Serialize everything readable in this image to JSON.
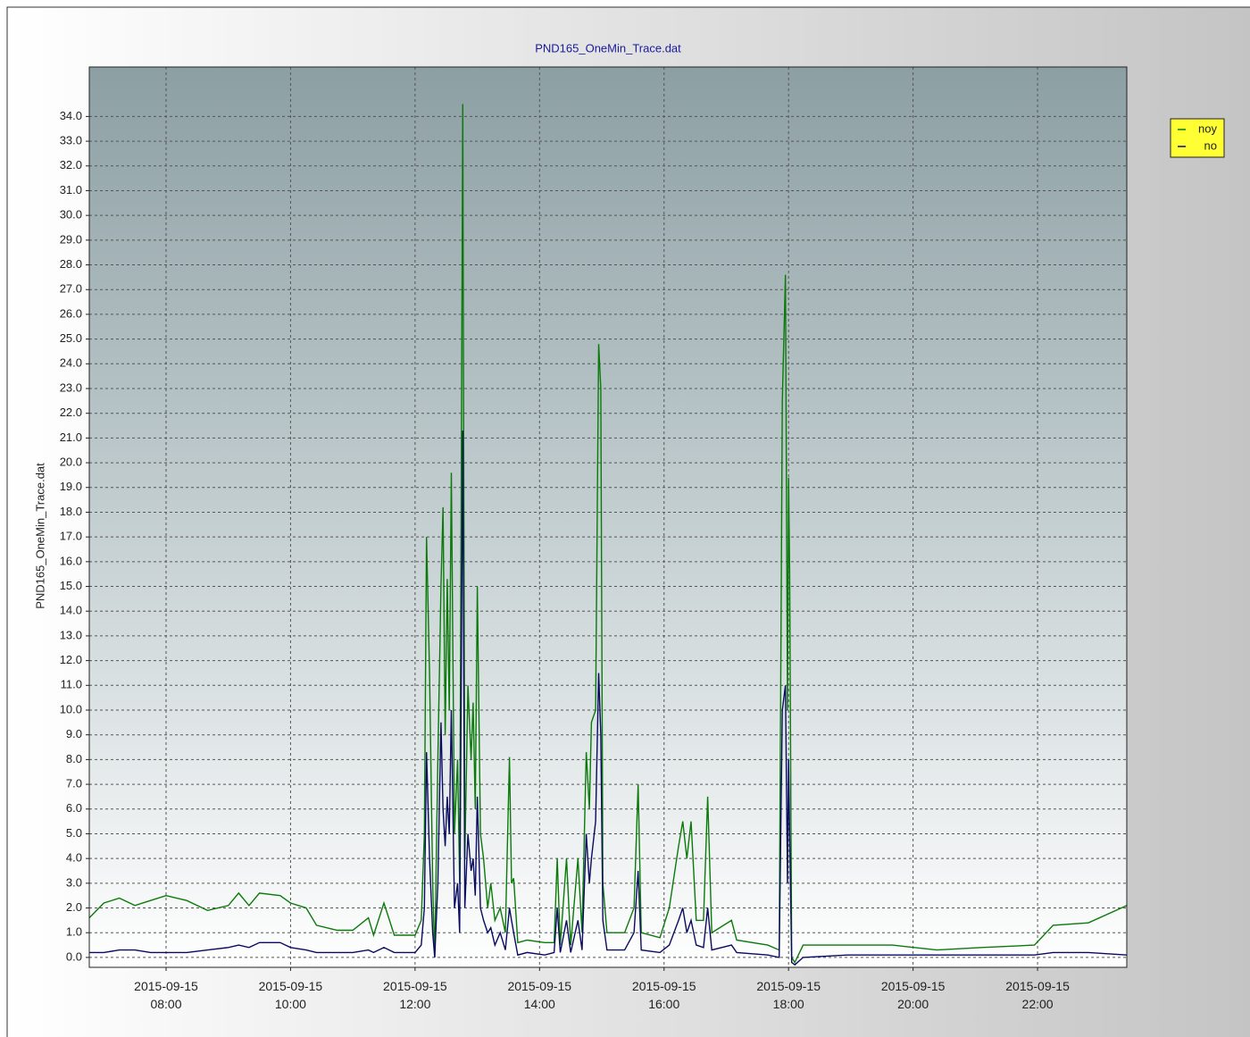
{
  "chart_data": {
    "type": "line",
    "title": "PND165_OneMin_Trace.dat",
    "y_label": "PND165_OneMin_Trace.dat",
    "legend": "top-right",
    "grid": true,
    "xlim": [
      "2015-09-15 06:46",
      "2015-09-15 23:26"
    ],
    "xticks": [
      "2015-09-15 08:00",
      "2015-09-15 10:00",
      "2015-09-15 12:00",
      "2015-09-15 14:00",
      "2015-09-15 16:00",
      "2015-09-15 18:00",
      "2015-09-15 20:00",
      "2015-09-15 22:00"
    ],
    "ylim": [
      -0.4,
      36
    ],
    "yticks": [
      {
        "value": 0,
        "label": "0.0"
      },
      {
        "value": 1,
        "label": "1.0"
      },
      {
        "value": 2,
        "label": "2.0"
      },
      {
        "value": 3,
        "label": "3.0"
      },
      {
        "value": 4,
        "label": "4.0"
      },
      {
        "value": 5,
        "label": "5.0"
      },
      {
        "value": 6,
        "label": "6.0"
      },
      {
        "value": 7,
        "label": "7.0"
      },
      {
        "value": 8,
        "label": "8.0"
      },
      {
        "value": 9,
        "label": "9.0"
      },
      {
        "value": 10,
        "label": "10.0"
      },
      {
        "value": 11,
        "label": "11.0"
      },
      {
        "value": 12,
        "label": "12.0"
      },
      {
        "value": 13,
        "label": "13.0"
      },
      {
        "value": 14,
        "label": "14.0"
      },
      {
        "value": 15,
        "label": "15.0"
      },
      {
        "value": 16,
        "label": "16.0"
      },
      {
        "value": 17,
        "label": "17.0"
      },
      {
        "value": 18,
        "label": "18.0"
      },
      {
        "value": 19,
        "label": "19.0"
      },
      {
        "value": 20,
        "label": "20.0"
      },
      {
        "value": 21,
        "label": "21.0"
      },
      {
        "value": 22,
        "label": "22.0"
      },
      {
        "value": 23,
        "label": "23.0"
      },
      {
        "value": 24,
        "label": "24.0"
      },
      {
        "value": 25,
        "label": "25.0"
      },
      {
        "value": 26,
        "label": "26.0"
      },
      {
        "value": 27,
        "label": "27.0"
      },
      {
        "value": 28,
        "label": "28.0"
      },
      {
        "value": 29,
        "label": "29.0"
      },
      {
        "value": 30,
        "label": "30.0"
      },
      {
        "value": 31,
        "label": "31.0"
      },
      {
        "value": 32,
        "label": "32.0"
      },
      {
        "value": 33,
        "label": "33.0"
      },
      {
        "value": 34,
        "label": "34.0"
      }
    ],
    "x": [
      "2015-09-15 06:46",
      "2015-09-15 07:00",
      "2015-09-15 07:15",
      "2015-09-15 07:30",
      "2015-09-15 07:45",
      "2015-09-15 08:00",
      "2015-09-15 08:20",
      "2015-09-15 08:40",
      "2015-09-15 09:00",
      "2015-09-15 09:10",
      "2015-09-15 09:20",
      "2015-09-15 09:30",
      "2015-09-15 09:50",
      "2015-09-15 10:00",
      "2015-09-15 10:15",
      "2015-09-15 10:25",
      "2015-09-15 10:45",
      "2015-09-15 11:00",
      "2015-09-15 11:15",
      "2015-09-15 11:20",
      "2015-09-15 11:30",
      "2015-09-15 11:40",
      "2015-09-15 12:00",
      "2015-09-15 12:06",
      "2015-09-15 12:09",
      "2015-09-15 12:11",
      "2015-09-15 12:14",
      "2015-09-15 12:17",
      "2015-09-15 12:19",
      "2015-09-15 12:22",
      "2015-09-15 12:25",
      "2015-09-15 12:27",
      "2015-09-15 12:29",
      "2015-09-15 12:31",
      "2015-09-15 12:33",
      "2015-09-15 12:35",
      "2015-09-15 12:38",
      "2015-09-15 12:41",
      "2015-09-15 12:43",
      "2015-09-15 12:46",
      "2015-09-15 12:48",
      "2015-09-15 12:51",
      "2015-09-15 12:54",
      "2015-09-15 12:56",
      "2015-09-15 12:58",
      "2015-09-15 13:00",
      "2015-09-15 13:03",
      "2015-09-15 13:06",
      "2015-09-15 13:10",
      "2015-09-15 13:13",
      "2015-09-15 13:17",
      "2015-09-15 13:22",
      "2015-09-15 13:27",
      "2015-09-15 13:31",
      "2015-09-15 13:33",
      "2015-09-15 13:35",
      "2015-09-15 13:39",
      "2015-09-15 13:48",
      "2015-09-15 14:05",
      "2015-09-15 14:14",
      "2015-09-15 14:17",
      "2015-09-15 14:20",
      "2015-09-15 14:26",
      "2015-09-15 14:30",
      "2015-09-15 14:37",
      "2015-09-15 14:41",
      "2015-09-15 14:45",
      "2015-09-15 14:48",
      "2015-09-15 14:50",
      "2015-09-15 14:54",
      "2015-09-15 14:57",
      "2015-09-15 14:59",
      "2015-09-15 15:01",
      "2015-09-15 15:05",
      "2015-09-15 15:22",
      "2015-09-15 15:31",
      "2015-09-15 15:35",
      "2015-09-15 15:38",
      "2015-09-15 15:56",
      "2015-09-15 16:05",
      "2015-09-15 16:14",
      "2015-09-15 16:18",
      "2015-09-15 16:22",
      "2015-09-15 16:26",
      "2015-09-15 16:31",
      "2015-09-15 16:38",
      "2015-09-15 16:42",
      "2015-09-15 16:46",
      "2015-09-15 17:05",
      "2015-09-15 17:10",
      "2015-09-15 17:40",
      "2015-09-15 17:51",
      "2015-09-15 17:54",
      "2015-09-15 17:57",
      "2015-09-15 17:59",
      "2015-09-15 18:00",
      "2015-09-15 18:01",
      "2015-09-15 18:03",
      "2015-09-15 18:06",
      "2015-09-15 18:14",
      "2015-09-15 18:57",
      "2015-09-15 19:40",
      "2015-09-15 20:23",
      "2015-09-15 21:06",
      "2015-09-15 21:57",
      "2015-09-15 22:15",
      "2015-09-15 22:49",
      "2015-09-15 23:26"
    ],
    "series": [
      {
        "name": "noy",
        "color": "#0a7a0a",
        "values": [
          1.6,
          2.2,
          2.4,
          2.1,
          2.3,
          2.5,
          2.3,
          1.9,
          2.1,
          2.6,
          2.1,
          2.6,
          2.5,
          2.2,
          2.0,
          1.3,
          1.1,
          1.1,
          1.6,
          0.9,
          2.2,
          0.9,
          0.9,
          1.5,
          5.0,
          17.0,
          11.5,
          3.0,
          0.0,
          8.0,
          15.0,
          18.2,
          9.0,
          15.3,
          10.0,
          19.6,
          5.0,
          8.0,
          3.0,
          34.5,
          4.0,
          11.0,
          8.0,
          10.3,
          6.0,
          15.0,
          5.0,
          4.0,
          2.0,
          3.0,
          1.5,
          2.0,
          1.0,
          8.1,
          3.0,
          3.2,
          0.6,
          0.7,
          0.6,
          0.6,
          4.0,
          0.5,
          4.0,
          0.5,
          4.0,
          1.0,
          8.3,
          6.0,
          9.5,
          10.0,
          24.8,
          23.0,
          3.0,
          1.0,
          1.0,
          2.0,
          7.0,
          1.0,
          0.8,
          2.0,
          4.5,
          5.5,
          4.0,
          5.5,
          1.5,
          1.5,
          6.5,
          1.0,
          1.5,
          0.7,
          0.5,
          0.3,
          22.5,
          27.6,
          10.0,
          19.4,
          15.6,
          0.0,
          -0.2,
          0.5,
          0.5,
          0.5,
          0.3,
          0.4,
          0.5,
          1.3,
          1.4,
          2.1
        ]
      },
      {
        "name": "no",
        "color": "#0a0a60",
        "values": [
          0.2,
          0.2,
          0.3,
          0.3,
          0.2,
          0.2,
          0.2,
          0.3,
          0.4,
          0.5,
          0.4,
          0.6,
          0.6,
          0.4,
          0.3,
          0.2,
          0.2,
          0.2,
          0.3,
          0.2,
          0.4,
          0.2,
          0.2,
          0.5,
          2.0,
          8.3,
          4.0,
          1.0,
          0.0,
          3.0,
          9.5,
          6.0,
          4.5,
          6.5,
          5.0,
          10.0,
          2.0,
          3.0,
          1.0,
          21.3,
          2.0,
          5.0,
          3.5,
          4.0,
          2.5,
          6.5,
          2.0,
          1.5,
          1.0,
          1.2,
          0.5,
          1.0,
          0.3,
          2.0,
          1.5,
          1.0,
          0.1,
          0.2,
          0.1,
          0.2,
          2.0,
          0.2,
          1.5,
          0.2,
          1.5,
          0.3,
          5.0,
          3.0,
          4.0,
          5.5,
          11.5,
          9.0,
          1.5,
          0.3,
          0.3,
          1.0,
          3.5,
          0.3,
          0.2,
          0.5,
          1.5,
          2.0,
          1.0,
          1.5,
          0.5,
          0.4,
          2.0,
          0.3,
          0.5,
          0.2,
          0.1,
          0.0,
          10.0,
          11.0,
          3.0,
          8.0,
          5.0,
          -0.2,
          -0.3,
          0.0,
          0.1,
          0.1,
          0.1,
          0.1,
          0.1,
          0.2,
          0.2,
          0.1
        ]
      }
    ]
  }
}
